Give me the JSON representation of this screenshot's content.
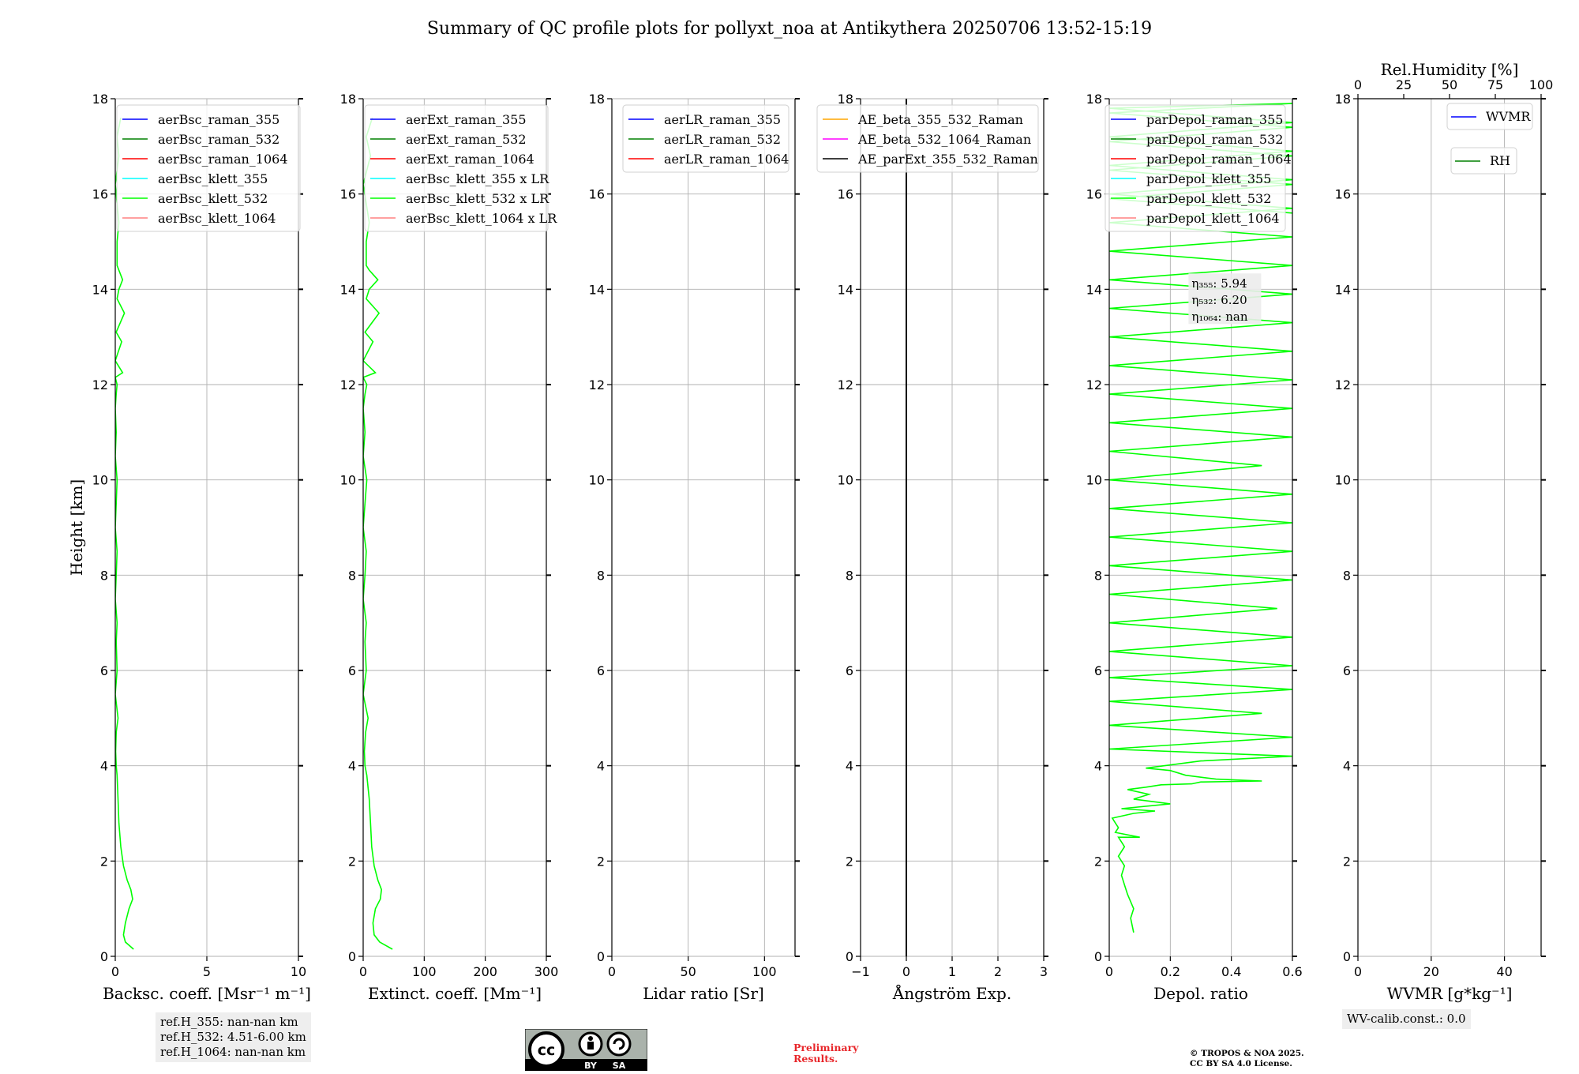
{
  "title": "Summary of QC profile plots for pollyxt_noa at Antikythera 20250706 13:52-15:19",
  "chart_data": [
    {
      "type": "line",
      "id": "bsc",
      "xlabel": "Backsc. coeff. [Msr⁻¹ m⁻¹]",
      "ylabel": "Height [km]",
      "xlim": [
        0,
        10
      ],
      "ylim": [
        0,
        18
      ],
      "xticks": [
        0,
        5,
        10
      ],
      "yticks": [
        0,
        2,
        4,
        6,
        8,
        10,
        12,
        14,
        16,
        18
      ],
      "legend": [
        {
          "label": "aerBsc_raman_355",
          "color": "#0000ff"
        },
        {
          "label": "aerBsc_raman_532",
          "color": "#008000"
        },
        {
          "label": "aerBsc_raman_1064",
          "color": "#ff0000"
        },
        {
          "label": "aerBsc_klett_355",
          "color": "#00ffff"
        },
        {
          "label": "aerBsc_klett_532",
          "color": "#00ff00"
        },
        {
          "label": "aerBsc_klett_1064",
          "color": "#ff8080"
        }
      ],
      "series": [
        {
          "name": "aerBsc_klett_532",
          "color": "#00ff00",
          "x": [
            1.0,
            0.55,
            0.45,
            0.55,
            0.75,
            0.95,
            0.85,
            0.65,
            0.45,
            0.3,
            0.2,
            0.15,
            0.1,
            0.05,
            0.02,
            0.05,
            0.15,
            0.0,
            0.1,
            0.05,
            0.1,
            0.0,
            0.05,
            0.1,
            0.0,
            0.05,
            0.1,
            0.0,
            0.05,
            0.0,
            0.05,
            0.1,
            0.0,
            0.4,
            0.0,
            0.35,
            0.05,
            0.5,
            0.1,
            0.2,
            0.4,
            0.2,
            0.1,
            0.1,
            0.2,
            0.1,
            0.0,
            0.2,
            0.1,
            0.3
          ],
          "y": [
            0.15,
            0.3,
            0.45,
            0.7,
            1.0,
            1.2,
            1.4,
            1.6,
            1.9,
            2.3,
            2.8,
            3.3,
            3.8,
            4.0,
            4.3,
            4.7,
            5.0,
            5.5,
            6.0,
            6.6,
            7.0,
            7.5,
            8.0,
            8.5,
            9.0,
            9.5,
            10.0,
            10.5,
            11.0,
            11.5,
            11.8,
            12.0,
            12.15,
            12.25,
            12.5,
            12.9,
            13.1,
            13.5,
            13.8,
            14.0,
            14.2,
            14.4,
            14.5,
            15.0,
            15.4,
            15.8,
            16.2,
            16.8,
            17.2,
            17.6
          ]
        }
      ]
    },
    {
      "type": "line",
      "id": "ext",
      "xlabel": "Extinct. coeff. [Mm⁻¹]",
      "ylabel": "",
      "xlim": [
        0,
        300
      ],
      "ylim": [
        0,
        18
      ],
      "xticks": [
        0,
        100,
        200,
        300
      ],
      "yticks": [
        0,
        2,
        4,
        6,
        8,
        10,
        12,
        14,
        16,
        18
      ],
      "legend": [
        {
          "label": "aerExt_raman_355",
          "color": "#0000ff"
        },
        {
          "label": "aerExt_raman_532",
          "color": "#008000"
        },
        {
          "label": "aerExt_raman_1064",
          "color": "#ff0000"
        },
        {
          "label": "aerBsc_klett_355 x LR",
          "color": "#00ffff"
        },
        {
          "label": "aerBsc_klett_532 x LR",
          "color": "#00ff00"
        },
        {
          "label": "aerBsc_klett_1064 x LR",
          "color": "#ff8080"
        }
      ],
      "series": [
        {
          "name": "aerBsc_klett_532 x LR",
          "color": "#00ff00",
          "x": [
            48,
            27,
            18,
            16,
            20,
            28,
            30,
            24,
            18,
            14,
            12,
            10,
            6,
            3,
            2,
            4,
            8,
            0,
            5,
            3,
            5,
            0,
            3,
            5,
            0,
            3,
            6,
            0,
            3,
            0,
            3,
            6,
            0,
            20,
            0,
            16,
            3,
            26,
            5,
            10,
            24,
            10,
            5,
            5,
            10,
            5,
            0,
            12,
            5,
            15
          ],
          "y": [
            0.15,
            0.3,
            0.45,
            0.7,
            1.0,
            1.2,
            1.4,
            1.6,
            1.9,
            2.3,
            2.8,
            3.3,
            3.8,
            4.0,
            4.3,
            4.7,
            5.0,
            5.5,
            6.0,
            6.6,
            7.0,
            7.5,
            8.0,
            8.5,
            9.0,
            9.5,
            10.0,
            10.5,
            11.0,
            11.5,
            11.8,
            12.0,
            12.15,
            12.25,
            12.5,
            12.9,
            13.1,
            13.5,
            13.8,
            14.0,
            14.2,
            14.4,
            14.5,
            15.0,
            15.4,
            15.8,
            16.2,
            16.8,
            17.2,
            17.6
          ]
        }
      ]
    },
    {
      "type": "line",
      "id": "lr",
      "xlabel": "Lidar ratio [Sr]",
      "ylabel": "",
      "xlim": [
        0,
        120
      ],
      "ylim": [
        0,
        18
      ],
      "xticks": [
        0,
        50,
        100
      ],
      "yticks": [
        0,
        2,
        4,
        6,
        8,
        10,
        12,
        14,
        16,
        18
      ],
      "legend": [
        {
          "label": "aerLR_raman_355",
          "color": "#0000ff"
        },
        {
          "label": "aerLR_raman_532",
          "color": "#008000"
        },
        {
          "label": "aerLR_raman_1064",
          "color": "#ff0000"
        }
      ],
      "series": []
    },
    {
      "type": "line",
      "id": "ae",
      "xlabel": "Ångström Exp.",
      "ylabel": "",
      "xlim": [
        -1,
        3
      ],
      "ylim": [
        0,
        18
      ],
      "xticks": [
        -1,
        0,
        1,
        2,
        3
      ],
      "yticks": [
        0,
        2,
        4,
        6,
        8,
        10,
        12,
        14,
        16,
        18
      ],
      "legend": [
        {
          "label": "AE_beta_355_532_Raman",
          "color": "#ffa500"
        },
        {
          "label": "AE_beta_532_1064_Raman",
          "color": "#ff00ff"
        },
        {
          "label": "AE_parExt_355_532_Raman",
          "color": "#000000"
        }
      ],
      "series": [
        {
          "name": "zero line",
          "color": "#000000",
          "x": [
            0,
            0
          ],
          "y": [
            0,
            18
          ]
        }
      ]
    },
    {
      "type": "line",
      "id": "depol",
      "xlabel": "Depol. ratio",
      "ylabel": "",
      "xlim": [
        0.0,
        0.6
      ],
      "ylim": [
        0,
        18
      ],
      "xticks": [
        0.0,
        0.2,
        0.4,
        0.6
      ],
      "yticks": [
        0,
        2,
        4,
        6,
        8,
        10,
        12,
        14,
        16,
        18
      ],
      "legend": [
        {
          "label": "parDepol_raman_355",
          "color": "#0000ff"
        },
        {
          "label": "parDepol_raman_532",
          "color": "#008000"
        },
        {
          "label": "parDepol_raman_1064",
          "color": "#ff0000"
        },
        {
          "label": "parDepol_klett_355",
          "color": "#00ffff"
        },
        {
          "label": "parDepol_klett_532",
          "color": "#00ff00"
        },
        {
          "label": "parDepol_klett_1064",
          "color": "#ff8080"
        }
      ],
      "annotations": [
        "η₃₅₅: 5.94",
        "η₅₃₂: 6.20",
        "η₁₀₆₄: nan"
      ],
      "series": [
        {
          "name": "parDepol_klett_532",
          "color": "#00ff00",
          "x": [
            0.08,
            0.07,
            0.08,
            0.06,
            0.05,
            0.04,
            0.05,
            0.03,
            0.05,
            0.04,
            0.03,
            0.1,
            0.02,
            0.03,
            0.02,
            0.01,
            0.08,
            0.15,
            0.04,
            0.2,
            0.08,
            0.13,
            0.06,
            0.12,
            0.17,
            0.27,
            0.3,
            0.5,
            0.35,
            0.25,
            0.2,
            0.12,
            0.3,
            0.6,
            0.0,
            0.6,
            0.0,
            0.5,
            0.0,
            0.6,
            0.0,
            0.6,
            0.0,
            0.6,
            0.0,
            0.55,
            0.0,
            0.6,
            0.0,
            0.6,
            0.0,
            0.6,
            0.0,
            0.6,
            0.0,
            0.5,
            0.0,
            0.6,
            0.0,
            0.6,
            0.0,
            0.6,
            0.0,
            0.6,
            0.0,
            0.6,
            0.0,
            0.6,
            0.0,
            0.6,
            0.0,
            0.6,
            0.0,
            0.6,
            0.0,
            0.6,
            0.0,
            0.6,
            0.0,
            0.6,
            0.0,
            0.6,
            0.0,
            0.6,
            0.0,
            0.6,
            0.0,
            0.6,
            0.0,
            0.6
          ],
          "y": [
            0.5,
            0.8,
            1.0,
            1.3,
            1.5,
            1.7,
            1.9,
            2.1,
            2.3,
            2.4,
            2.5,
            2.5,
            2.6,
            2.7,
            2.8,
            2.9,
            3.0,
            3.05,
            3.1,
            3.2,
            3.3,
            3.4,
            3.5,
            3.55,
            3.6,
            3.62,
            3.66,
            3.68,
            3.72,
            3.8,
            3.9,
            3.95,
            4.1,
            4.2,
            4.35,
            4.6,
            4.85,
            5.1,
            5.35,
            5.6,
            5.85,
            6.1,
            6.4,
            6.7,
            7.0,
            7.3,
            7.6,
            7.9,
            8.2,
            8.5,
            8.8,
            9.1,
            9.4,
            9.7,
            10.0,
            10.3,
            10.6,
            10.9,
            11.2,
            11.5,
            11.8,
            12.1,
            12.4,
            12.7,
            13.0,
            13.3,
            13.6,
            13.9,
            14.2,
            14.5,
            14.8,
            15.1,
            15.4,
            15.7,
            16.0,
            16.3,
            16.6,
            16.9,
            17.2,
            17.5,
            17.8,
            17.9,
            17.7,
            17.4,
            17.1,
            16.8,
            16.5,
            16.2,
            15.9,
            15.6
          ]
        }
      ]
    },
    {
      "type": "line",
      "id": "wv",
      "xlabel": "WVMR [g*kg⁻¹]",
      "top_xlabel": "Rel.Humidity [%]",
      "ylabel": "",
      "xlim": [
        0,
        50
      ],
      "top_xlim": [
        0,
        100
      ],
      "ylim": [
        0,
        18
      ],
      "xticks": [
        0,
        20,
        40
      ],
      "top_xticks": [
        0,
        25,
        50,
        75,
        100
      ],
      "yticks": [
        0,
        2,
        4,
        6,
        8,
        10,
        12,
        14,
        16,
        18
      ],
      "legend": [
        {
          "label": "WVMR",
          "color": "#0000ff"
        },
        {
          "label": "RH",
          "color": "#008000"
        }
      ],
      "series": []
    }
  ],
  "info_boxes": {
    "refh": [
      "ref.H_355: nan-nan km",
      "ref.H_532: 4.51-6.00 km",
      "ref.H_1064: nan-nan km"
    ],
    "wvcalib": "WV-calib.const.: 0.0",
    "preliminary": [
      "Preliminary",
      "Results."
    ],
    "copyright": [
      "© TROPOS & NOA 2025.",
      "CC BY SA 4.0 License."
    ],
    "license_badge": [
      "BY",
      "SA"
    ]
  }
}
